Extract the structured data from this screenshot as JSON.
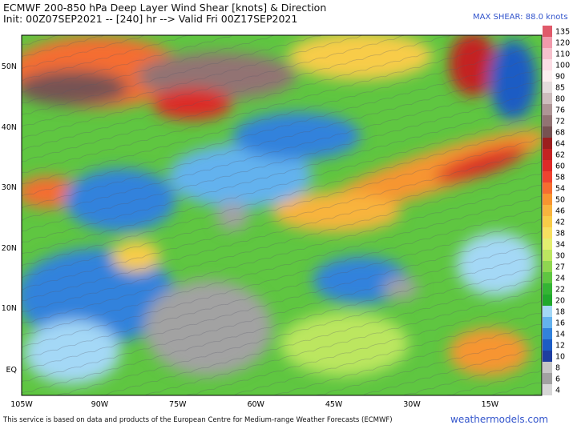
{
  "header": {
    "title": "ECMWF 200-850 hPa Deep Layer Wind Shear [knots] & Direction",
    "init": "Init: 00Z07SEP2021 -- [240] hr --> Valid Fri 00Z17SEP2021",
    "max_shear": "MAX SHEAR: 88.0 knots"
  },
  "map": {
    "lat_labels": [
      "50N",
      "40N",
      "30N",
      "20N",
      "10N",
      "EQ"
    ],
    "lon_labels": [
      "105W",
      "90W",
      "75W",
      "60W",
      "45W",
      "30W",
      "15W"
    ]
  },
  "colorbar": {
    "levels": [
      {
        "label": "135",
        "color": "#e05a6a"
      },
      {
        "label": "120",
        "color": "#f19aab"
      },
      {
        "label": "110",
        "color": "#f6c1cc"
      },
      {
        "label": "100",
        "color": "#fbdde4"
      },
      {
        "label": "90",
        "color": "#fcefef"
      },
      {
        "label": "85",
        "color": "#e4dcdc"
      },
      {
        "label": "80",
        "color": "#cdbdbd"
      },
      {
        "label": "76",
        "color": "#ae9595"
      },
      {
        "label": "72",
        "color": "#927373"
      },
      {
        "label": "68",
        "color": "#775252"
      },
      {
        "label": "64",
        "color": "#9c1e1e"
      },
      {
        "label": "62",
        "color": "#c42222"
      },
      {
        "label": "60",
        "color": "#dd2a28"
      },
      {
        "label": "58",
        "color": "#ee4330"
      },
      {
        "label": "54",
        "color": "#f56d30"
      },
      {
        "label": "50",
        "color": "#f79530"
      },
      {
        "label": "46",
        "color": "#f8b43e"
      },
      {
        "label": "42",
        "color": "#f8cc48"
      },
      {
        "label": "38",
        "color": "#f7df60"
      },
      {
        "label": "34",
        "color": "#e4ee70"
      },
      {
        "label": "30",
        "color": "#bce660"
      },
      {
        "label": "27",
        "color": "#8fd650"
      },
      {
        "label": "24",
        "color": "#5fc641"
      },
      {
        "label": "22",
        "color": "#34b434"
      },
      {
        "label": "20",
        "color": "#20a82c"
      },
      {
        "label": "18",
        "color": "#a4d8f6"
      },
      {
        "label": "16",
        "color": "#64b2ee"
      },
      {
        "label": "14",
        "color": "#3282dc"
      },
      {
        "label": "12",
        "color": "#1c5cc4"
      },
      {
        "label": "10",
        "color": "#1e3ea0"
      },
      {
        "label": "8",
        "color": "#c6c6c6"
      },
      {
        "label": "6",
        "color": "#a2a2a2"
      },
      {
        "label": "4",
        "color": "#d6d6d6"
      }
    ]
  },
  "footer": {
    "disclaimer": "This service is based on data and products of the European Centre for Medium-range Weather Forecasts (ECMWF)",
    "brand": "weathermodels.com"
  }
}
